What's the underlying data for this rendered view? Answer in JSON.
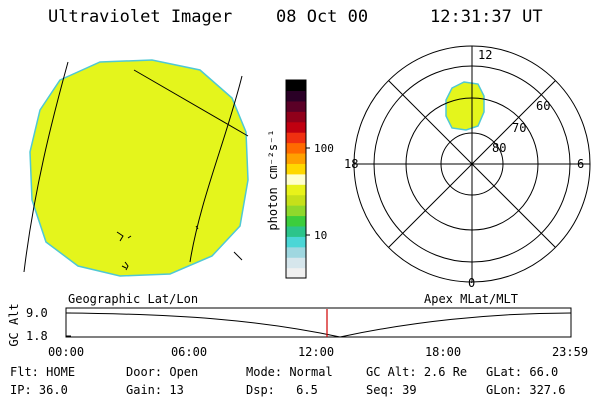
{
  "header": {
    "title": "Ultraviolet Imager",
    "date": "08 Oct 00",
    "time": "12:31:37 UT"
  },
  "colorbar": {
    "label": "photon cm⁻²s⁻¹",
    "ticks": [
      "100",
      "10"
    ],
    "colors": [
      "#f0f0f0",
      "#d6e6ec",
      "#9fd7e0",
      "#4bd6d6",
      "#2cc48a",
      "#3ccd3c",
      "#8fd82c",
      "#c6e01a",
      "#e8f21a",
      "#ffffcc",
      "#ffd800",
      "#ffa000",
      "#ff6a00",
      "#f03010",
      "#c00010",
      "#90001a",
      "#5a0026",
      "#2a0026",
      "#000000"
    ]
  },
  "geo_image": {
    "fill_color": "#e4f51c",
    "edge_color": "#4fc8d4"
  },
  "polar_plot": {
    "lat_labels": [
      "80",
      "70",
      "60"
    ],
    "mlt_labels": [
      "12",
      "18",
      "6",
      "0"
    ]
  },
  "altitude_plot": {
    "ylabel": "GC Alt",
    "yticks": [
      "9.0",
      "1.8"
    ],
    "left_title": "Geographic Lat/Lon",
    "right_title": "Apex MLat/MLT",
    "xticks": [
      "00:00",
      "06:00",
      "12:00",
      "18:00",
      "23:59"
    ],
    "marker_color": "#d00000"
  },
  "footer": {
    "row1": [
      {
        "label": "Flt:",
        "value": "HOME"
      },
      {
        "label": "Door:",
        "value": "Open"
      },
      {
        "label": "Mode:",
        "value": "Normal"
      },
      {
        "label": "GC Alt:",
        "value": "2.6 Re"
      },
      {
        "label": "GLat:",
        "value": "66.0"
      }
    ],
    "row2": [
      {
        "label": "IP:",
        "value": "36.0"
      },
      {
        "label": "Gain:",
        "value": "13"
      },
      {
        "label": "Dsp:",
        "value": "6.5"
      },
      {
        "label": "Seq:",
        "value": "39"
      },
      {
        "label": "GLon:",
        "value": "327.6"
      }
    ]
  }
}
